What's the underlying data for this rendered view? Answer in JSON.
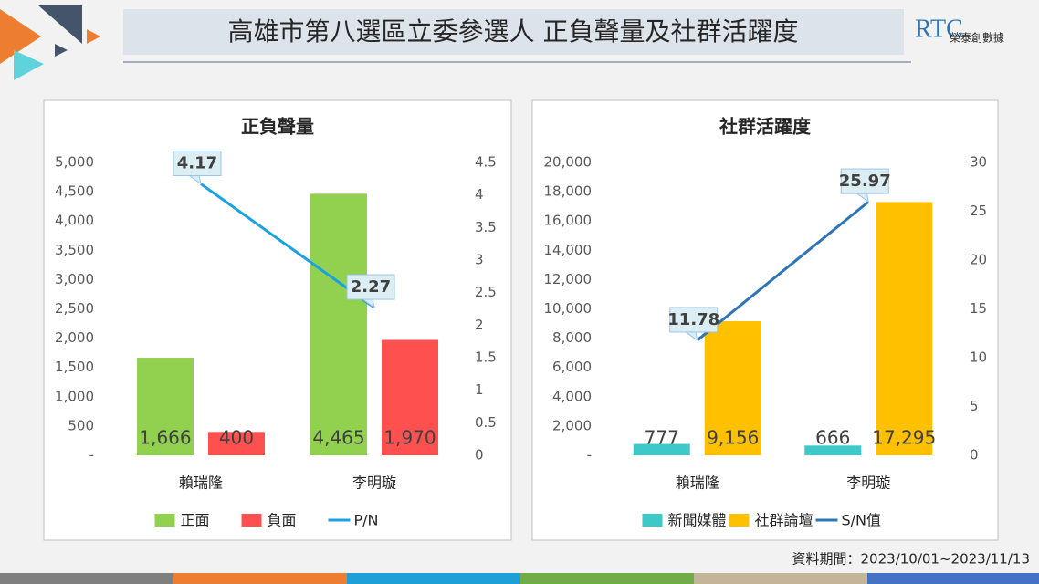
{
  "title": "高雄市第八選區立委參選人  正負聲量及社群活躍度",
  "logo": {
    "mark": "RTC",
    "name": "榮泰創數據"
  },
  "note": "資料期間：2023/10/01~2023/11/13",
  "chart_data": [
    {
      "type": "bar",
      "title": "正負聲量",
      "categories": [
        "賴瑞隆",
        "李明璇"
      ],
      "series": [
        {
          "name": "正面",
          "color": "#92d050",
          "values": [
            1666,
            4465
          ],
          "value_labels": [
            "1,666",
            "4,465"
          ]
        },
        {
          "name": "負面",
          "color": "#ff5050",
          "values": [
            400,
            1970
          ],
          "value_labels": [
            "400",
            "1,970"
          ]
        },
        {
          "name": "P/N",
          "type": "line",
          "axis": "y2",
          "color": "#1ba1e2",
          "values": [
            4.17,
            2.27
          ]
        }
      ],
      "ylim": [
        0,
        5000
      ],
      "yticks": [
        {
          "value": 0,
          "label": "-"
        },
        500,
        {
          "value": 1000,
          "label": "1,000"
        },
        {
          "value": 1500,
          "label": "1,500"
        },
        {
          "value": 2000,
          "label": "2,000"
        },
        {
          "value": 2500,
          "label": "2,500"
        },
        {
          "value": 3000,
          "label": "3,000"
        },
        {
          "value": 3500,
          "label": "3,500"
        },
        {
          "value": 4000,
          "label": "4,000"
        },
        {
          "value": 4500,
          "label": "4,500"
        },
        {
          "value": 5000,
          "label": "5,000"
        }
      ],
      "y2lim": [
        0,
        4.5
      ],
      "y2ticks": [
        0,
        0.5,
        1,
        1.5,
        2,
        2.5,
        3,
        3.5,
        4,
        4.5
      ]
    },
    {
      "type": "bar",
      "title": "社群活躍度",
      "categories": [
        "賴瑞隆",
        "李明璇"
      ],
      "series": [
        {
          "name": "新聞媒體",
          "color": "#3ec8c8",
          "values": [
            777,
            666
          ],
          "value_labels": [
            "777",
            "666"
          ]
        },
        {
          "name": "社群論壇",
          "color": "#ffc000",
          "values": [
            9156,
            17295
          ],
          "value_labels": [
            "9,156",
            "17,295"
          ]
        },
        {
          "name": "S/N值",
          "type": "line",
          "axis": "y2",
          "color": "#2e75b6",
          "values": [
            11.78,
            25.97
          ]
        }
      ],
      "ylim": [
        0,
        20000
      ],
      "yticks": [
        {
          "value": 0,
          "label": "-"
        },
        {
          "value": 2000,
          "label": "2,000"
        },
        {
          "value": 4000,
          "label": "4,000"
        },
        {
          "value": 6000,
          "label": "6,000"
        },
        {
          "value": 8000,
          "label": "8,000"
        },
        {
          "value": 10000,
          "label": "10,000"
        },
        {
          "value": 12000,
          "label": "12,000"
        },
        {
          "value": 14000,
          "label": "14,000"
        },
        {
          "value": 16000,
          "label": "16,000"
        },
        {
          "value": 18000,
          "label": "18,000"
        },
        {
          "value": 20000,
          "label": "20,000"
        }
      ],
      "y2lim": [
        0,
        30
      ],
      "y2ticks": [
        0,
        5,
        10,
        15,
        20,
        25,
        30
      ]
    }
  ]
}
